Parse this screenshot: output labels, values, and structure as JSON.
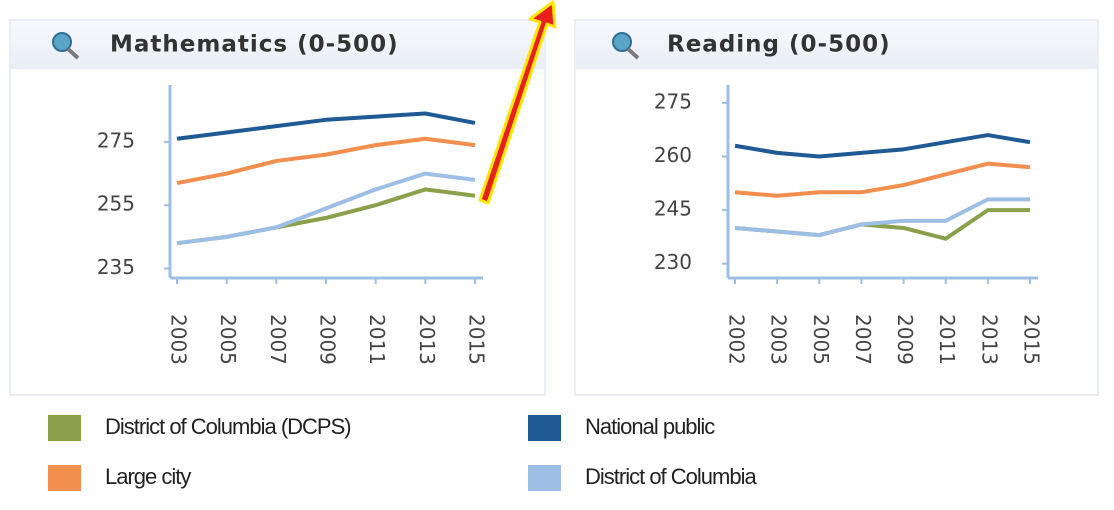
{
  "chart_data": [
    {
      "type": "line",
      "title": "Mathematics (0-500)",
      "categories": [
        "2003",
        "2005",
        "2007",
        "2009",
        "2011",
        "2013",
        "2015"
      ],
      "ylim": [
        232,
        293
      ],
      "yticks": [
        235,
        255,
        275
      ],
      "series": [
        {
          "name": "District of Columbia (DCPS)",
          "color": "#8aa04a",
          "values": [
            243,
            245,
            248,
            251,
            255,
            260,
            258
          ]
        },
        {
          "name": "National public",
          "color": "#1f5a94",
          "values": [
            276,
            278,
            280,
            282,
            283,
            284,
            281
          ]
        },
        {
          "name": "Large city",
          "color": "#f28e4e",
          "values": [
            262,
            265,
            269,
            271,
            274,
            276,
            274
          ]
        },
        {
          "name": "District of Columbia",
          "color": "#9dbfe6",
          "values": [
            243,
            245,
            248,
            254,
            260,
            265,
            263
          ]
        }
      ]
    },
    {
      "type": "line",
      "title": "Reading (0-500)",
      "categories": [
        "2002",
        "2003",
        "2005",
        "2007",
        "2009",
        "2011",
        "2013",
        "2015"
      ],
      "ylim": [
        226,
        280
      ],
      "yticks": [
        230,
        245,
        260,
        275
      ],
      "series": [
        {
          "name": "District of Columbia (DCPS)",
          "color": "#8aa04a",
          "values": [
            240,
            239,
            238,
            241,
            240,
            237,
            245,
            245
          ]
        },
        {
          "name": "National public",
          "color": "#1f5a94",
          "values": [
            263,
            261,
            260,
            261,
            262,
            264,
            266,
            264
          ]
        },
        {
          "name": "Large city",
          "color": "#f28e4e",
          "values": [
            250,
            249,
            250,
            250,
            252,
            255,
            258,
            257
          ]
        },
        {
          "name": "District of Columbia",
          "color": "#9dbfe6",
          "values": [
            240,
            239,
            238,
            241,
            242,
            242,
            248,
            248
          ]
        }
      ]
    }
  ]
}
